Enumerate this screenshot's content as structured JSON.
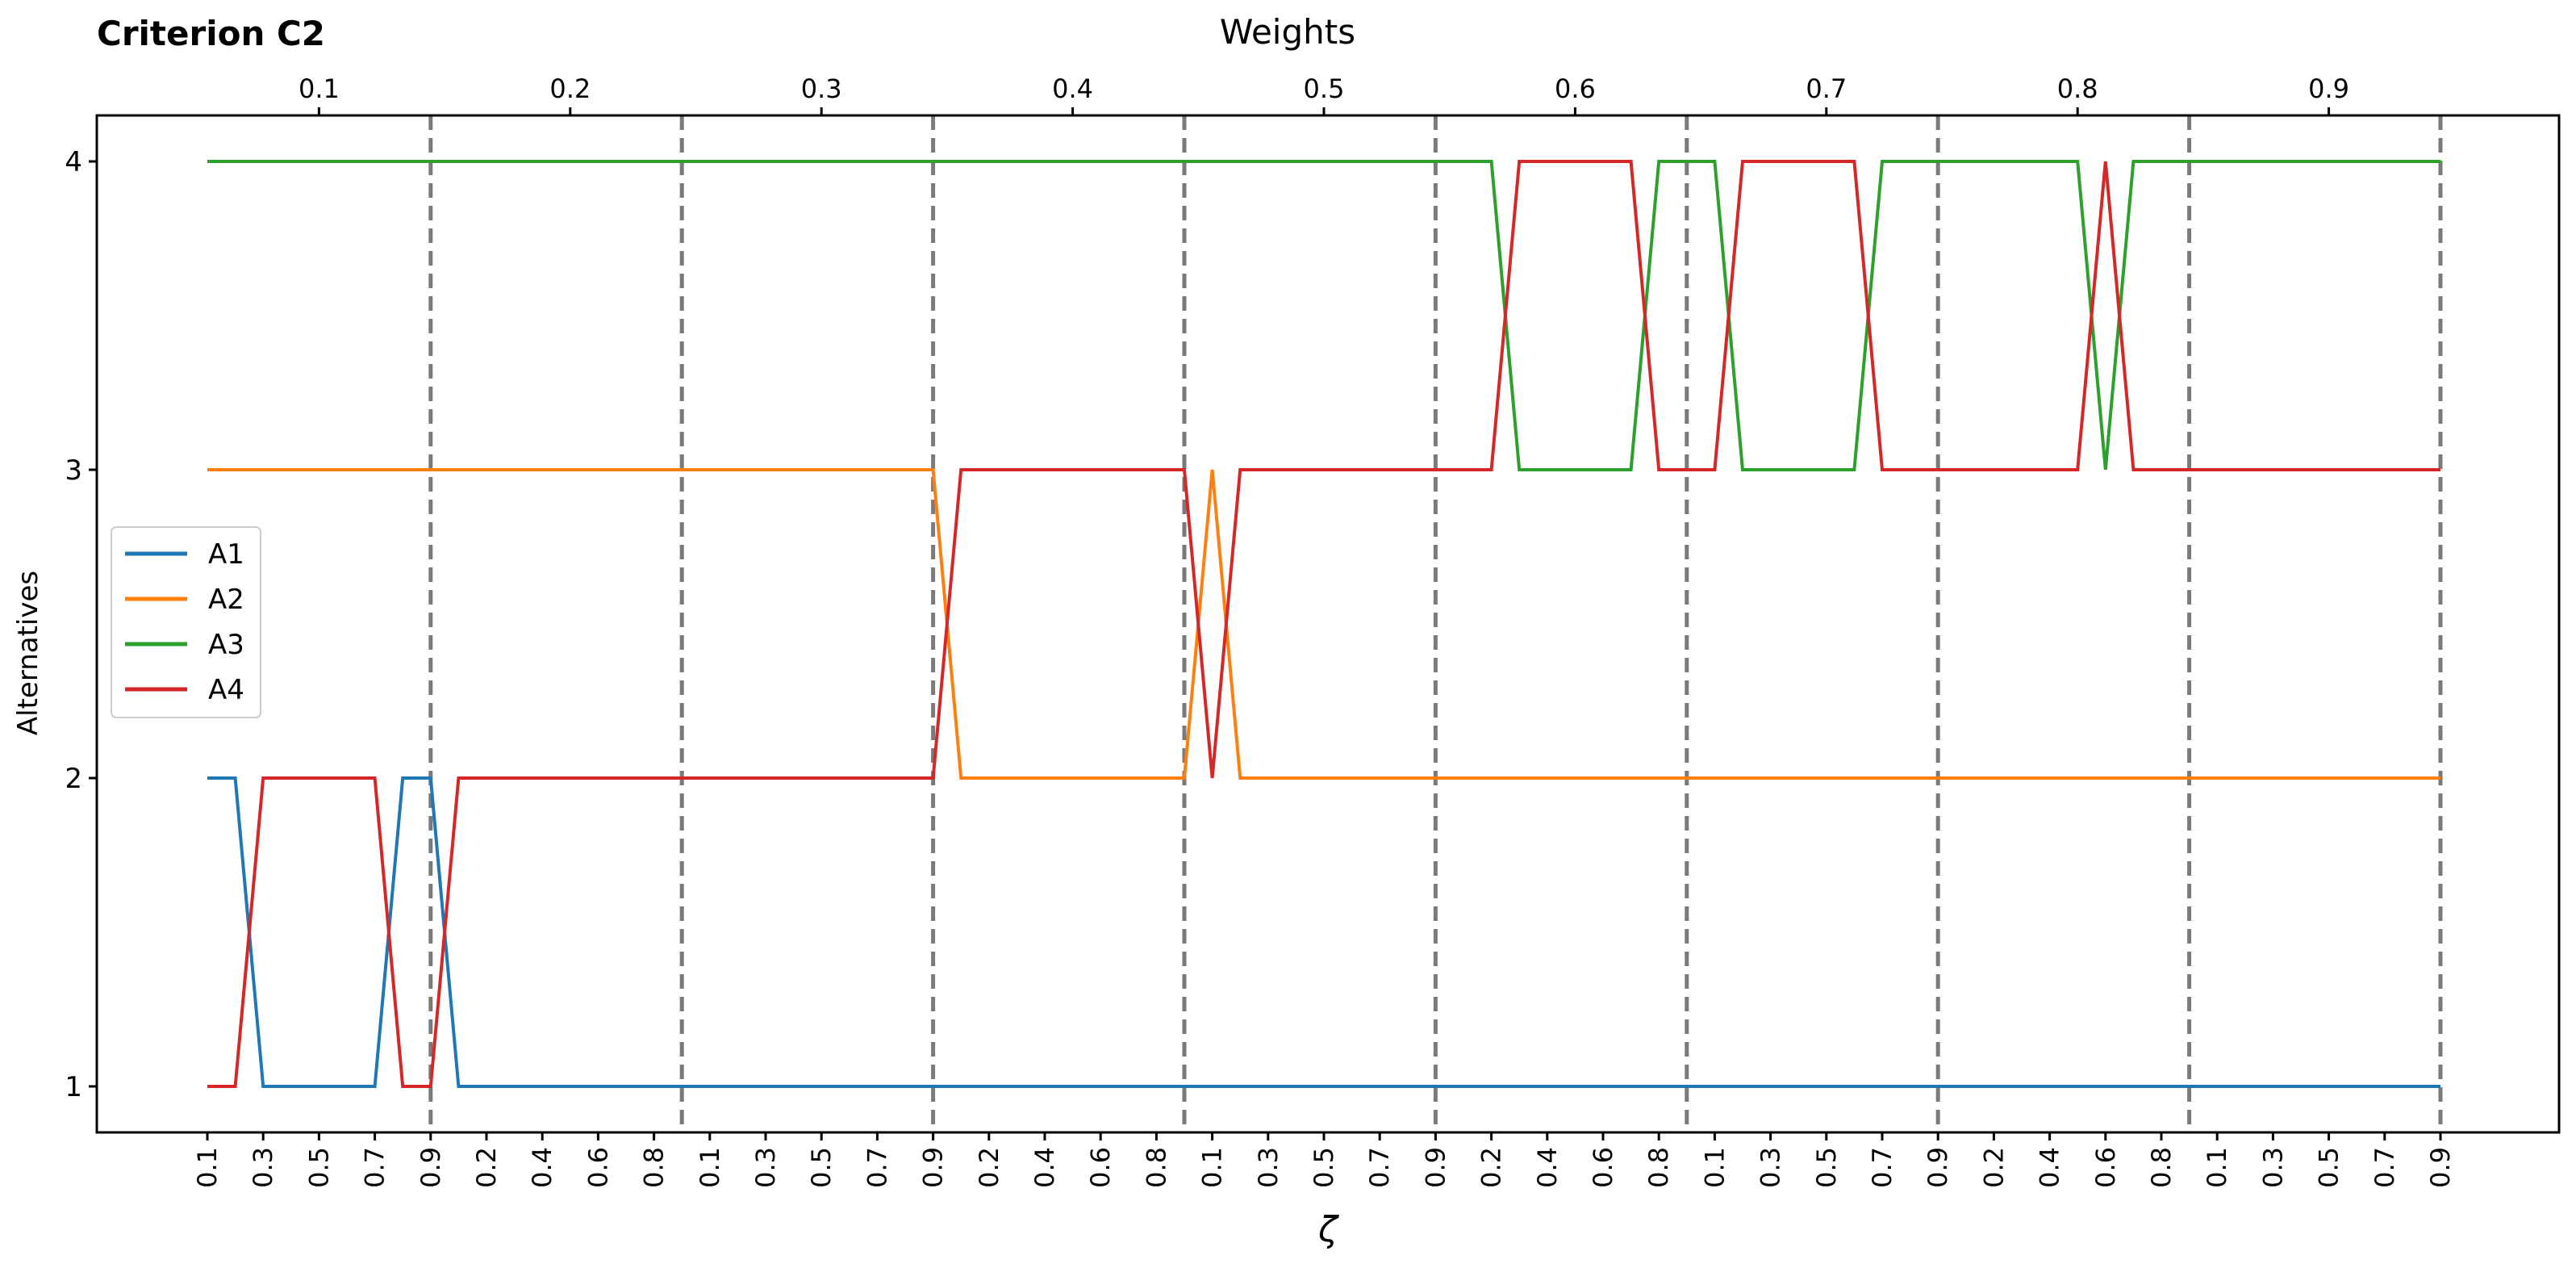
{
  "chart_data": {
    "type": "line",
    "title": "Criterion C2",
    "top_axis_label": "Weights",
    "xlabel": "ζ",
    "ylabel": "Alternatives",
    "ylim": [
      0.85,
      4.15
    ],
    "y_ticks": [
      "1",
      "2",
      "3",
      "4"
    ],
    "top_ticks": [
      "0.1",
      "0.2",
      "0.3",
      "0.4",
      "0.5",
      "0.6",
      "0.7",
      "0.8",
      "0.9"
    ],
    "zeta_ticks": [
      "0.1",
      "0.3",
      "0.5",
      "0.7",
      "0.9",
      "0.2",
      "0.4",
      "0.6",
      "0.8",
      "0.1",
      "0.3",
      "0.5",
      "0.7",
      "0.9",
      "0.2",
      "0.4",
      "0.6",
      "0.8",
      "0.1",
      "0.3",
      "0.5",
      "0.7",
      "0.9",
      "0.2",
      "0.4",
      "0.6",
      "0.8",
      "0.1",
      "0.3",
      "0.5",
      "0.7",
      "0.9",
      "0.2",
      "0.4",
      "0.6",
      "0.8",
      "0.1",
      "0.3",
      "0.5",
      "0.7",
      "0.9"
    ],
    "grid": false,
    "legend_position": "center-left",
    "segment_boundaries": [
      "0.9",
      "0.8",
      "0.9",
      "0.8",
      "0.9",
      "0.8",
      "0.9",
      "0.8",
      "0.9"
    ],
    "series": [
      {
        "name": "A1",
        "color": "#1f77b4",
        "points": [
          [
            0,
            2
          ],
          [
            1,
            2
          ],
          [
            2,
            1
          ],
          [
            3,
            1
          ],
          [
            4,
            1
          ],
          [
            5,
            1
          ],
          [
            6,
            1
          ],
          [
            7,
            2
          ],
          [
            8,
            2
          ],
          [
            9,
            1
          ],
          [
            10,
            1
          ],
          [
            80,
            1
          ]
        ]
      },
      {
        "name": "A2",
        "color": "#ff7f0e",
        "points": [
          [
            0,
            3
          ],
          [
            26,
            3
          ],
          [
            27,
            2
          ],
          [
            28,
            2
          ],
          [
            35,
            2
          ],
          [
            36,
            3
          ],
          [
            37,
            2
          ],
          [
            80,
            2
          ]
        ]
      },
      {
        "name": "A3",
        "color": "#2ca02c",
        "points": [
          [
            0,
            4
          ],
          [
            46,
            4
          ],
          [
            47,
            3
          ],
          [
            48,
            3
          ],
          [
            51,
            3
          ],
          [
            52,
            4
          ],
          [
            53,
            4
          ],
          [
            54,
            4
          ],
          [
            55,
            3
          ],
          [
            56,
            3
          ],
          [
            59,
            3
          ],
          [
            60,
            4
          ],
          [
            61,
            4
          ],
          [
            62,
            4
          ],
          [
            63,
            4
          ],
          [
            64,
            4
          ],
          [
            65,
            4
          ],
          [
            66,
            4
          ],
          [
            67,
            4
          ],
          [
            68,
            3
          ],
          [
            69,
            4
          ],
          [
            80,
            4
          ]
        ]
      },
      {
        "name": "A4",
        "color": "#d62728",
        "points": [
          [
            0,
            1
          ],
          [
            1,
            1
          ],
          [
            2,
            2
          ],
          [
            3,
            2
          ],
          [
            4,
            2
          ],
          [
            5,
            2
          ],
          [
            6,
            2
          ],
          [
            7,
            1
          ],
          [
            8,
            1
          ],
          [
            9,
            2
          ],
          [
            10,
            2
          ],
          [
            26,
            2
          ],
          [
            27,
            3
          ],
          [
            28,
            3
          ],
          [
            34,
            3
          ],
          [
            35,
            3
          ],
          [
            36,
            2
          ],
          [
            37,
            3
          ],
          [
            38,
            3
          ],
          [
            46,
            3
          ],
          [
            47,
            4
          ],
          [
            48,
            4
          ],
          [
            51,
            4
          ],
          [
            52,
            3
          ],
          [
            53,
            3
          ],
          [
            54,
            3
          ],
          [
            55,
            4
          ],
          [
            56,
            4
          ],
          [
            59,
            4
          ],
          [
            60,
            3
          ],
          [
            67,
            3
          ],
          [
            68,
            4
          ],
          [
            69,
            3
          ],
          [
            80,
            3
          ]
        ]
      }
    ]
  }
}
